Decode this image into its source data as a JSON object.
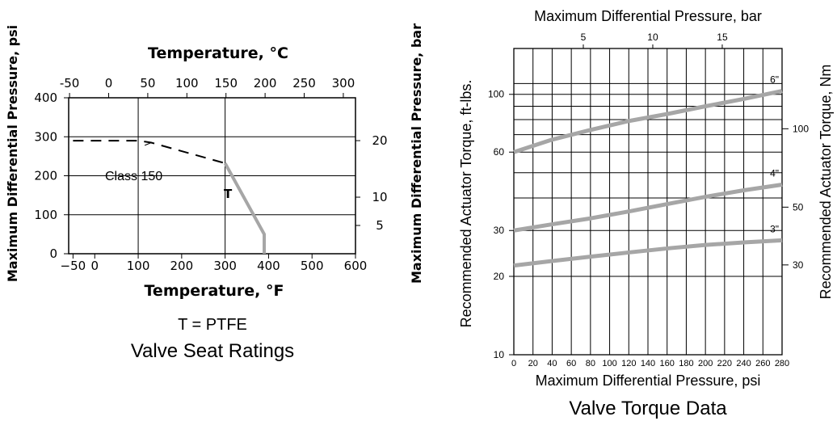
{
  "chart_data": [
    {
      "type": "line",
      "title": "Valve Seat Ratings",
      "subtitle": "T = PTFE",
      "xlabel_bottom": "Temperature, °F",
      "xlabel_top": "Temperature, °C",
      "ylabel_left": "Maximum Differential Pressure, psi",
      "ylabel_right": "Maximum Differential Pressure, bar",
      "xlim": [
        -60,
        600
      ],
      "ylim": [
        0,
        400
      ],
      "x_ticks_f": [
        "−50",
        "0",
        "100",
        "200",
        "300",
        "400",
        "500",
        "600"
      ],
      "x_ticks_c": [
        "-50",
        "0",
        "50",
        "100",
        "150",
        "200",
        "250",
        "300"
      ],
      "y_ticks_psi": [
        "0",
        "100",
        "200",
        "300",
        "400"
      ],
      "y_ticks_bar": [
        "5",
        "10",
        "20"
      ],
      "grid": true,
      "series": [
        {
          "name": "Class 150",
          "style": "dashed",
          "color": "#000000",
          "x": [
            -50,
            100,
            130,
            300
          ],
          "y": [
            290,
            290,
            285,
            232
          ]
        },
        {
          "name": "T",
          "style": "solid",
          "color": "#a6a6a6",
          "x": [
            300,
            390,
            390
          ],
          "y": [
            232,
            50,
            0
          ]
        }
      ],
      "annotations": [
        "Class 150",
        "T"
      ]
    },
    {
      "type": "line",
      "title": "Valve Torque Data",
      "xlabel_bottom": "Maximum Differential Pressure, psi",
      "xlabel_top": "Maximum Differential Pressure, bar",
      "ylabel_left": "Recommended Actuator Torque, ft-lbs.",
      "ylabel_right": "Recommended Actuator Torque, Nm",
      "xlim": [
        0,
        280
      ],
      "ylim": [
        10,
        150
      ],
      "yscale": "log",
      "x_ticks_psi": [
        "0",
        "20",
        "40",
        "60",
        "80",
        "100",
        "120",
        "140",
        "160",
        "180",
        "200",
        "220",
        "240",
        "260",
        "280"
      ],
      "x_ticks_bar": [
        "5",
        "10",
        "15"
      ],
      "y_ticks_ftlbs": [
        "10",
        "20",
        "30",
        "60",
        "100"
      ],
      "y_ticks_nm": [
        "30",
        "50",
        "100"
      ],
      "grid": true,
      "series": [
        {
          "name": "6\"",
          "color": "#a6a6a6",
          "x": [
            0,
            40,
            80,
            120,
            160,
            200,
            240,
            280
          ],
          "y": [
            60,
            67,
            73,
            79,
            84,
            90,
            96,
            103
          ]
        },
        {
          "name": "4\"",
          "color": "#a6a6a6",
          "x": [
            0,
            40,
            80,
            120,
            160,
            200,
            240,
            280
          ],
          "y": [
            30,
            31.7,
            33.4,
            35.5,
            37.9,
            40.4,
            42.8,
            45
          ]
        },
        {
          "name": "3\"",
          "color": "#a6a6a6",
          "x": [
            0,
            40,
            80,
            120,
            160,
            200,
            240,
            280
          ],
          "y": [
            22,
            22.9,
            23.8,
            24.7,
            25.6,
            26.4,
            27,
            27.5
          ]
        }
      ]
    }
  ]
}
